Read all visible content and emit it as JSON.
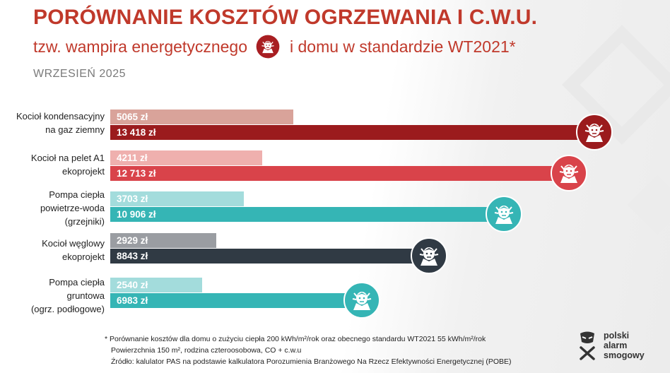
{
  "header": {
    "title": "PORÓWNANIE KOSZTÓW OGRZEWANIA I C.W.U.",
    "subtitle_part1": "tzw. wampira energetycznego",
    "subtitle_part2": "i domu w standardzie WT2021*",
    "date": "WRZESIEŃ 2025"
  },
  "colors": {
    "title_red": "#c0392b",
    "gas_dark": "#9b1b1d",
    "gas_light": "#d9a39a",
    "pellet_dark": "#d9434a",
    "pellet_light": "#efb0ae",
    "heatpump_air_dark": "#35b5b5",
    "heatpump_air_light": "#a3dcdc",
    "coal_dark": "#303a44",
    "coal_light": "#9a9da2",
    "heatpump_ground_dark": "#35b5b5",
    "heatpump_ground_light": "#a3dcdc"
  },
  "chart_data": {
    "type": "bar",
    "orientation": "horizontal",
    "categories": [
      "Kocioł kondensacyjny na gaz ziemny",
      "Kocioł na pelet A1 ekoprojekt",
      "Pompa ciepła powietrze-woda (grzejniki)",
      "Kocioł węglowy ekoprojekt",
      "Pompa ciepła gruntowa (ogrz. podłogowe)"
    ],
    "category_lines": [
      [
        "Kocioł kondensacyjny",
        "na gaz ziemny"
      ],
      [
        "Kocioł na pelet A1",
        "ekoprojekt"
      ],
      [
        "Pompa ciepła",
        "powietrze-woda",
        "(grzejniki)"
      ],
      [
        "Kocioł węglowy",
        "ekoprojekt"
      ],
      [
        "Pompa ciepła",
        "gruntowa",
        "(ogrz. podłogowe)"
      ]
    ],
    "series": [
      {
        "values": [
          5065,
          4211,
          3703,
          2929,
          2540
        ],
        "labels": [
          "5065 zł",
          "4211  zł",
          "3703 zł",
          "2929 zł",
          "2540 zł"
        ],
        "colors": [
          "#d9a39a",
          "#efb0ae",
          "#a3dcdc",
          "#9a9da2",
          "#a3dcdc"
        ]
      },
      {
        "values": [
          13418,
          12713,
          10906,
          8843,
          6983
        ],
        "labels": [
          "13 418 zł",
          "12 713 zł",
          "10 906 zł",
          "8843 zł",
          "6983 zł"
        ],
        "colors": [
          "#9b1b1d",
          "#d9434a",
          "#35b5b5",
          "#303a44",
          "#35b5b5"
        ]
      }
    ],
    "unit": "zł",
    "title": "PORÓWNANIE KOSZTÓW OGRZEWANIA I C.W.U.",
    "xlabel": "",
    "ylabel": "",
    "grid": false,
    "legend": "none"
  },
  "footnote": {
    "line1": "* Porównanie kosztów dla domu o zużyciu ciepła 200 kWh/m²/rok oraz obecnego standardu WT2021 55 kWh/m²/rok",
    "line2": "Powierzchnia 150 m², rodzina czteroosobowa, CO + c.w.u",
    "line3": "Źródło: kalulator PAS na podstawie kalkulatora Porozumienia Branżowego Na Rzecz Efektywności Energetycznej (POBE)"
  },
  "logo": {
    "line1": "polski",
    "line2": "alarm",
    "line3": "smogowy"
  }
}
